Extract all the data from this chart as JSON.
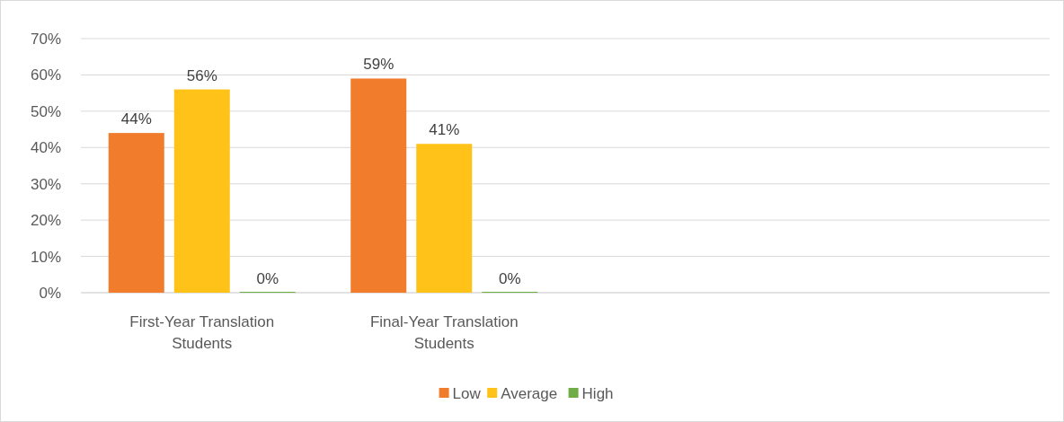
{
  "chart_data": {
    "type": "bar",
    "categories": [
      "First-Year Translation Students",
      "Final-Year Translation Students",
      null,
      null
    ],
    "series": [
      {
        "name": "Low",
        "color": "#f07c2c",
        "values": [
          44,
          59,
          null,
          null
        ],
        "value_labels": [
          "44%",
          "59%",
          null,
          null
        ]
      },
      {
        "name": "Average",
        "color": "#ffc219",
        "values": [
          56,
          41,
          null,
          null
        ],
        "value_labels": [
          "56%",
          "41%",
          null,
          null
        ]
      },
      {
        "name": "High",
        "color": "#70ad47",
        "values": [
          0,
          0,
          null,
          null
        ],
        "value_labels": [
          "0%",
          "0%",
          null,
          null
        ]
      }
    ],
    "ylim": [
      0,
      70
    ],
    "yticks": [
      {
        "value": 0,
        "label": "0%"
      },
      {
        "value": 10,
        "label": "10%"
      },
      {
        "value": 20,
        "label": "20%"
      },
      {
        "value": 30,
        "label": "30%"
      },
      {
        "value": 40,
        "label": "40%"
      },
      {
        "value": 50,
        "label": "50%"
      },
      {
        "value": 60,
        "label": "60%"
      },
      {
        "value": 70,
        "label": "70%"
      }
    ],
    "grid": "y",
    "legend": "bottom"
  }
}
